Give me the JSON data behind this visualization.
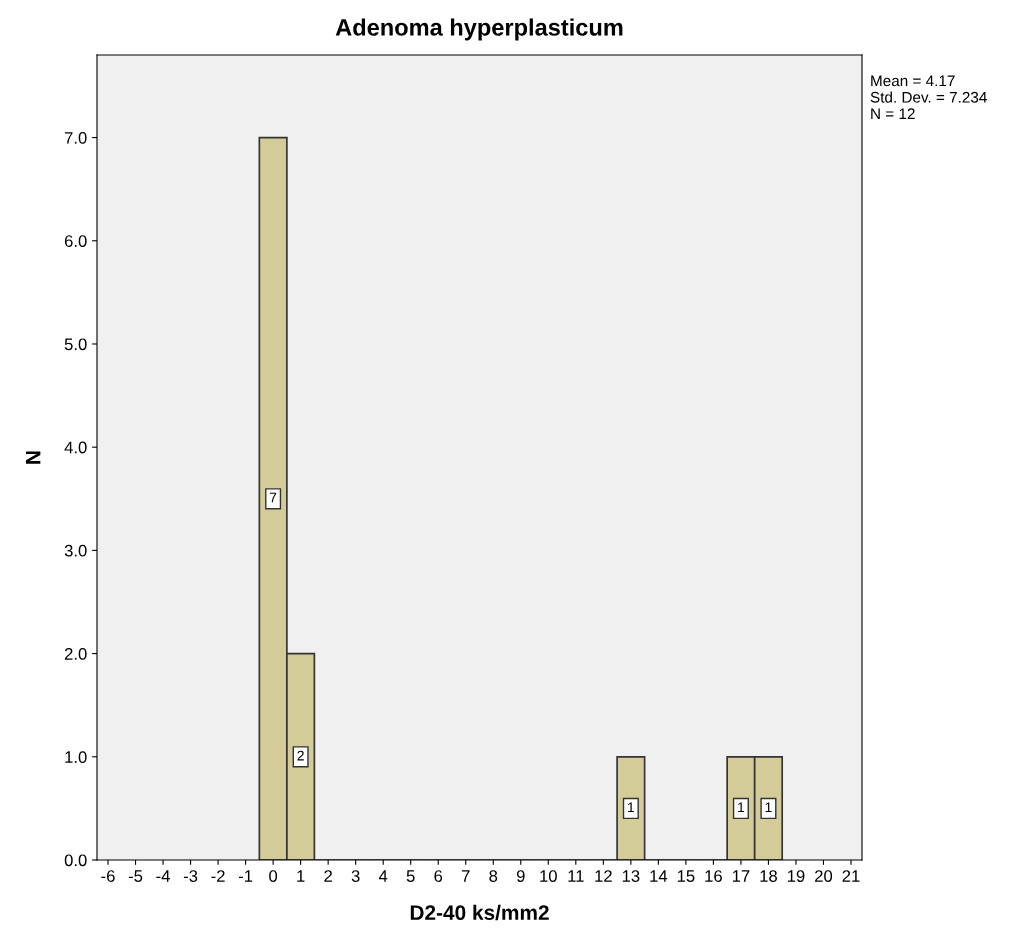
{
  "chart_data": {
    "type": "histogram",
    "title": "Adenoma hyperplasticum",
    "xlabel": "D2-40 ks/mm2",
    "ylabel": "N",
    "bins": [
      -0.5,
      0.5,
      1.5,
      2.5,
      3.5,
      4.5,
      5.5,
      6.5,
      7.5,
      8.5,
      9.5,
      10.5,
      11.5,
      12.5,
      13.5,
      14.5,
      15.5,
      16.5,
      17.5,
      18.5
    ],
    "values": [
      7,
      2,
      0,
      0,
      0,
      0,
      0,
      0,
      0,
      0,
      0,
      0,
      0,
      1,
      0,
      0,
      0,
      1,
      1
    ],
    "value_labels": [
      "7",
      "2",
      null,
      null,
      null,
      null,
      null,
      null,
      null,
      null,
      null,
      null,
      null,
      "1",
      null,
      null,
      null,
      "1",
      "1"
    ],
    "color": "#d4cc98",
    "xlim": [
      -6.4,
      21.4
    ],
    "xticks": [
      -6,
      -5,
      -4,
      -3,
      -2,
      -1,
      0,
      1,
      2,
      3,
      4,
      5,
      6,
      7,
      8,
      9,
      10,
      11,
      12,
      13,
      14,
      15,
      16,
      17,
      18,
      19,
      20,
      21
    ],
    "ylim": [
      0,
      7.8
    ],
    "yticks": [
      {
        "value": 0,
        "label": "0.0"
      },
      {
        "value": 1,
        "label": "1.0"
      },
      {
        "value": 2,
        "label": "2.0"
      },
      {
        "value": 3,
        "label": "3.0"
      },
      {
        "value": 4,
        "label": "4.0"
      },
      {
        "value": 5,
        "label": "5.0"
      },
      {
        "value": 6,
        "label": "6.0"
      },
      {
        "value": 7,
        "label": "7.0"
      }
    ],
    "grid": false,
    "annotations": [
      "Mean = 4.17\nStd. Dev. = 7.234\nN = 12"
    ]
  }
}
